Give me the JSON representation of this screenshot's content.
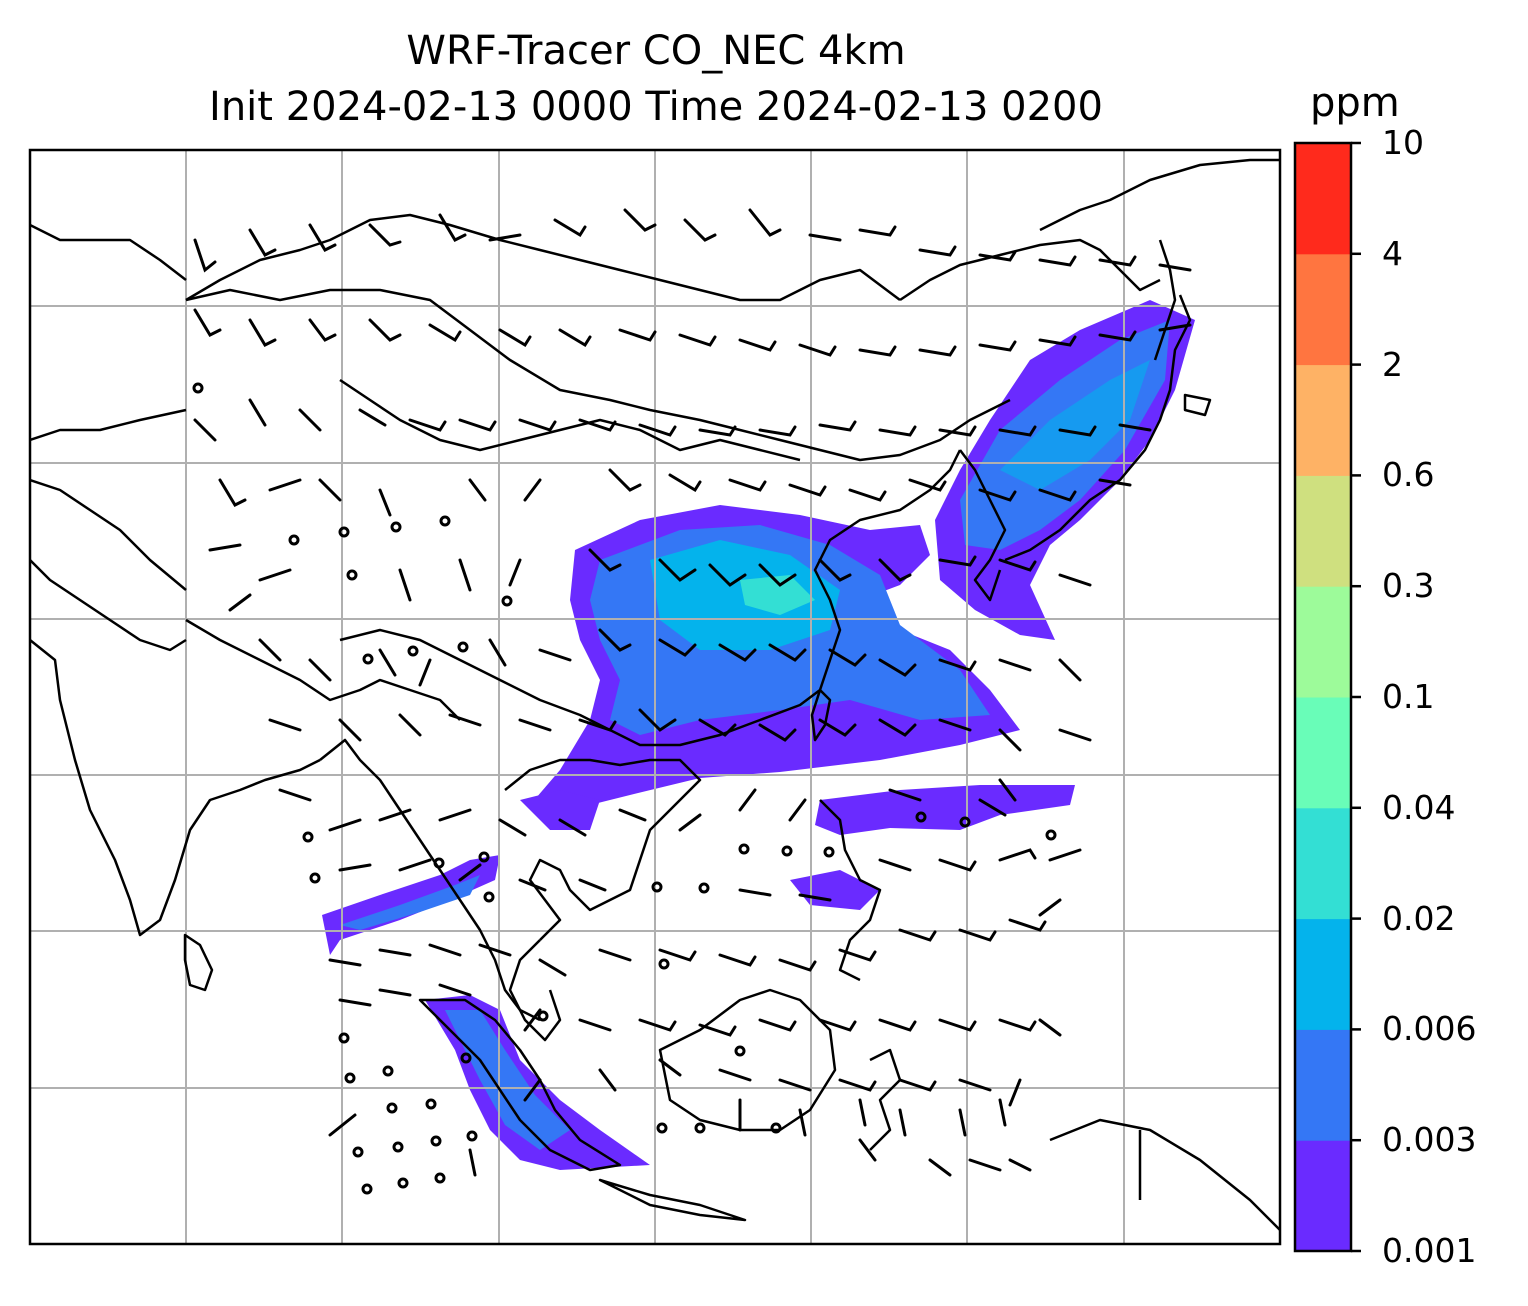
{
  "title": {
    "line1": "WRF-Tracer CO_NEC 4km",
    "line2": "Init 2024-02-13 0000 Time 2024-02-13 0200"
  },
  "colorbar": {
    "unit": "ppm",
    "levels": [
      "0.001",
      "0.003",
      "0.006",
      "0.02",
      "0.04",
      "0.1",
      "0.3",
      "0.6",
      "2",
      "4",
      "10"
    ],
    "colors": [
      "#6a2bff",
      "#3477f5",
      "#04b3ec",
      "#33dfd4",
      "#69fdb8",
      "#9dfb9a",
      "#cfe07f",
      "#feb265",
      "#ff7540",
      "#ff2a1c"
    ]
  },
  "map": {
    "grid": "on",
    "wind_barbs": "on",
    "coastlines": "on"
  },
  "colors": {
    "grid": "#b0b0b0",
    "coast": "#000000"
  }
}
